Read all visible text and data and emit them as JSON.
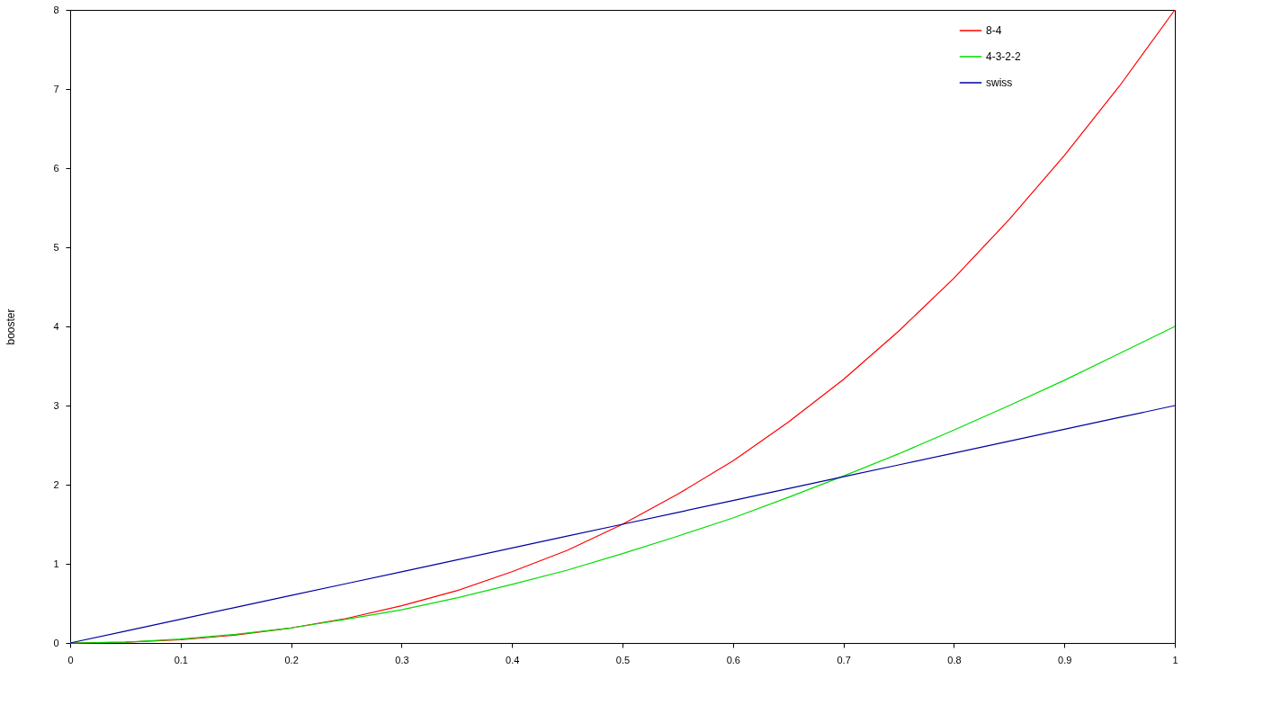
{
  "chart_data": {
    "type": "line",
    "ylabel": "booster",
    "legend": "top right",
    "grid": false,
    "marker": "none",
    "line_style": "solid",
    "x": [
      0,
      0.05,
      0.1,
      0.15,
      0.2,
      0.25,
      0.3,
      0.35,
      0.4,
      0.45,
      0.5,
      0.55,
      0.6,
      0.65,
      0.7,
      0.75,
      0.8,
      0.85,
      0.9,
      0.95,
      1
    ],
    "xlim": [
      0,
      1
    ],
    "xticks": [
      0,
      0.1,
      0.2,
      0.3,
      0.4,
      0.5,
      0.6,
      0.7,
      0.8,
      0.9,
      1
    ],
    "ylim": [
      0,
      8
    ],
    "yticks": [
      0,
      1,
      2,
      3,
      4,
      5,
      6,
      7,
      8
    ],
    "series": [
      {
        "name": "8-4",
        "color": "#ff0000",
        "values": [
          0,
          0.01,
          0.04,
          0.1,
          0.19,
          0.31,
          0.47,
          0.66,
          0.9,
          1.17,
          1.5,
          1.88,
          2.3,
          2.79,
          3.33,
          3.94,
          4.61,
          5.35,
          6.16,
          7.04,
          8
        ]
      },
      {
        "name": "4-3-2-2",
        "color": "#00dd00",
        "values": [
          0,
          0.01,
          0.05,
          0.11,
          0.19,
          0.3,
          0.42,
          0.57,
          0.74,
          0.92,
          1.13,
          1.35,
          1.58,
          1.84,
          2.11,
          2.39,
          2.69,
          3.0,
          3.32,
          3.66,
          4
        ]
      },
      {
        "name": "swiss",
        "color": "#0000a0",
        "values": [
          0,
          0.15,
          0.3,
          0.45,
          0.6,
          0.75,
          0.9,
          1.05,
          1.2,
          1.35,
          1.5,
          1.65,
          1.8,
          1.95,
          2.1,
          2.25,
          2.4,
          2.55,
          2.7,
          2.85,
          3
        ]
      }
    ]
  }
}
